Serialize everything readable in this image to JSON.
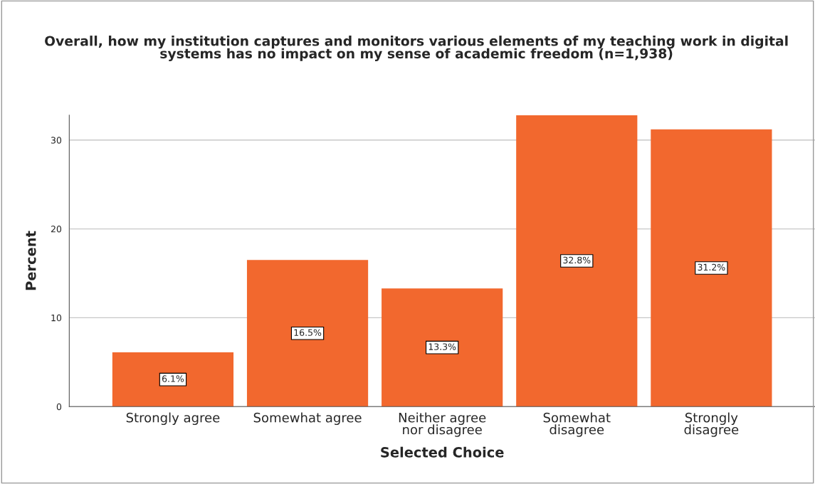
{
  "chart_data": {
    "type": "bar",
    "title": "Overall, how my institution captures and monitors various elements of my teaching work in digital\nsystems has no impact on my sense of academic freedom (n=1,938)",
    "xlabel": "Selected Choice",
    "ylabel": "Percent",
    "categories": [
      "Strongly agree",
      "Somewhat agree",
      "Neither agree\nnor disagree",
      "Somewhat\ndisagree",
      "Strongly\ndisagree"
    ],
    "values": [
      6.1,
      16.5,
      13.3,
      32.8,
      31.2
    ],
    "value_labels": [
      "6.1%",
      "16.5%",
      "13.3%",
      "32.8%",
      "31.2%"
    ],
    "color": "#f2682e",
    "ylim": [
      0,
      32.8
    ],
    "yticks": [
      0,
      10,
      20,
      30
    ],
    "grid": "y"
  }
}
